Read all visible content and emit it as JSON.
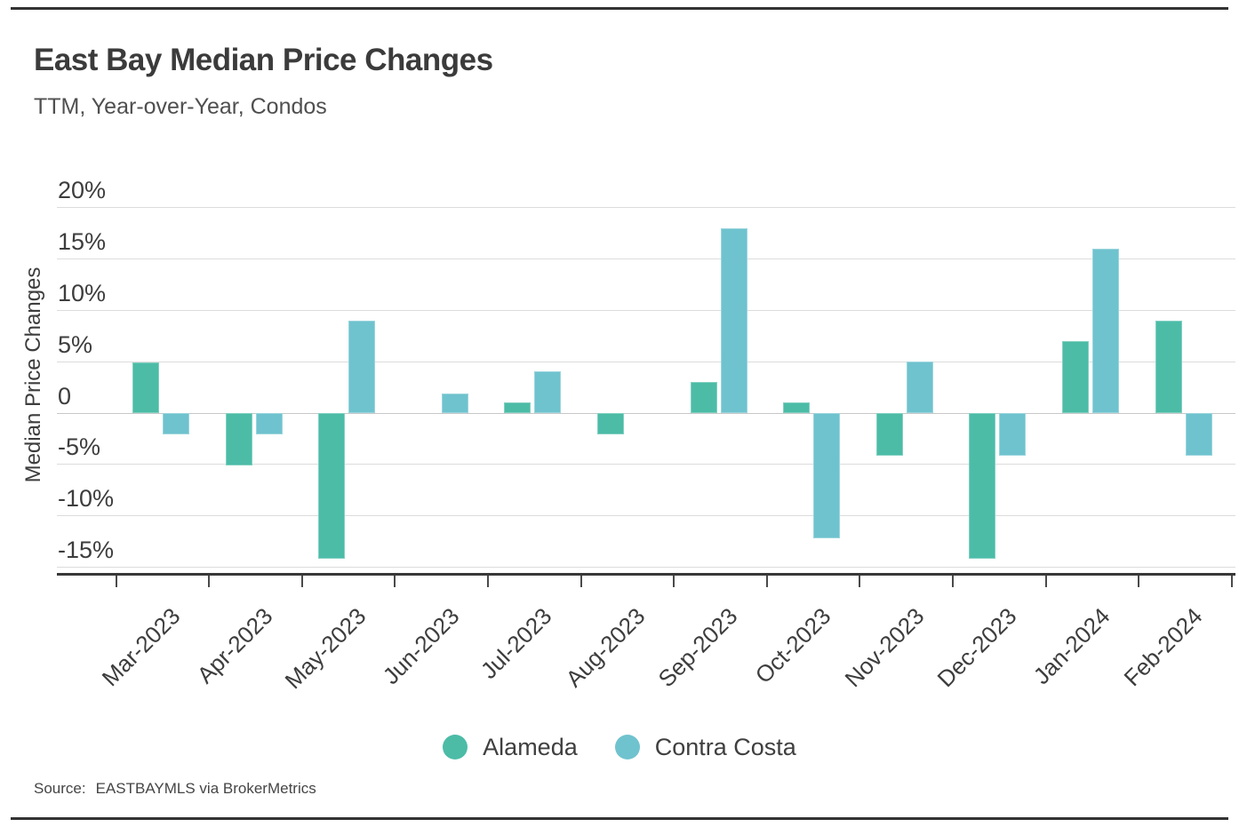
{
  "header": {
    "title": "East Bay Median Price Changes",
    "subtitle": "TTM, Year-over-Year, Condos"
  },
  "chart_data": {
    "type": "bar",
    "title": "East Bay Median Price Changes",
    "subtitle": "TTM, Year-over-Year, Condos",
    "xlabel": "",
    "ylabel": "Median Price Changes",
    "unit": "%",
    "grid": true,
    "legend_position": "bottom",
    "ylim": [
      -15.9,
      20.3
    ],
    "y_ticks": [
      "20%",
      "15%",
      "10%",
      "5%",
      "0",
      "-5%",
      "-10%",
      "-15%"
    ],
    "y_tick_values": [
      20,
      15,
      10,
      5,
      0,
      -5,
      -10,
      -15
    ],
    "categories": [
      "Mar-2023",
      "Apr-2023",
      "May-2023",
      "Jun-2023",
      "Jul-2023",
      "Aug-2023",
      "Sep-2023",
      "Oct-2023",
      "Nov-2023",
      "Dec-2023",
      "Jan-2024",
      "Feb-2024"
    ],
    "series": [
      {
        "name": "Alameda",
        "color": "#4CBCA7",
        "values": [
          4.9,
          -5.1,
          -14.2,
          0,
          1.0,
          -2.1,
          3.0,
          1.0,
          -4.2,
          -14.2,
          7.0,
          9.0
        ]
      },
      {
        "name": "Contra Costa",
        "color": "#6FC3CE",
        "values": [
          -2.1,
          -2.1,
          9.0,
          1.9,
          4.0,
          0,
          18.0,
          -12.2,
          5.0,
          -4.2,
          16.0,
          -4.2
        ]
      }
    ]
  },
  "legend": {
    "items": [
      {
        "label": "Alameda",
        "color": "#4CBCA7"
      },
      {
        "label": "Contra Costa",
        "color": "#6FC3CE"
      }
    ]
  },
  "source": {
    "label": "Source:",
    "text": "EASTBAYMLS via BrokerMetrics"
  }
}
